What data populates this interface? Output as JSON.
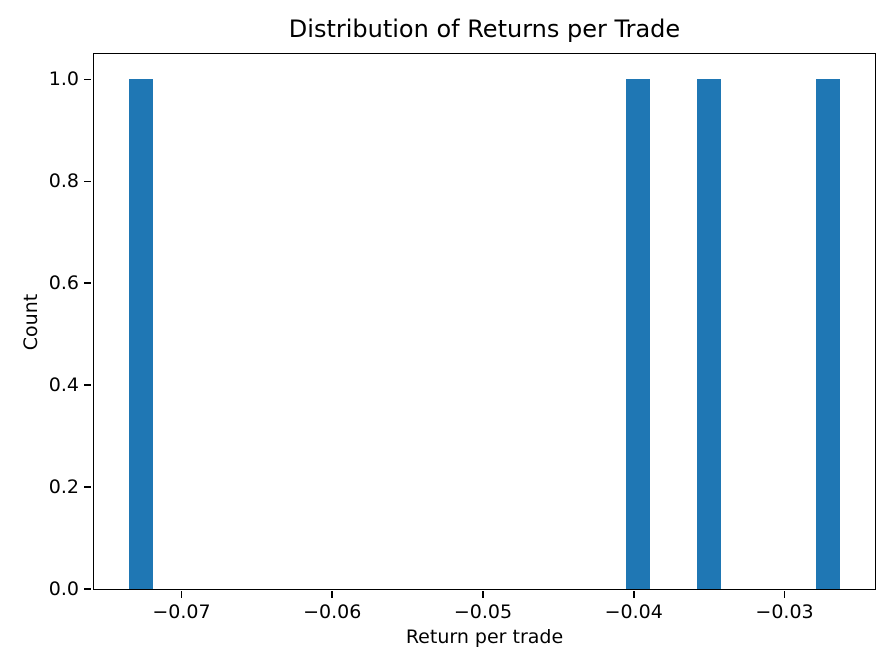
{
  "chart_data": {
    "type": "histogram",
    "title": "Distribution of Returns per Trade",
    "xlabel": "Return per trade",
    "ylabel": "Count",
    "xlim": [
      -0.0758,
      -0.024
    ],
    "ylim": [
      0,
      1.05
    ],
    "grid": false,
    "legend_position": "none",
    "bar_color": "#1f77b4",
    "axis_color": "#000000",
    "background_color": "#ffffff",
    "xticks": [
      {
        "value": -0.07,
        "label": "−0.07"
      },
      {
        "value": -0.06,
        "label": "−0.06"
      },
      {
        "value": -0.05,
        "label": "−0.05"
      },
      {
        "value": -0.04,
        "label": "−0.04"
      },
      {
        "value": -0.03,
        "label": "−0.03"
      }
    ],
    "yticks": [
      {
        "value": 0.0,
        "label": "0.0"
      },
      {
        "value": 0.2,
        "label": "0.2"
      },
      {
        "value": 0.4,
        "label": "0.4"
      },
      {
        "value": 0.6,
        "label": "0.6"
      },
      {
        "value": 0.8,
        "label": "0.8"
      },
      {
        "value": 1.0,
        "label": "1.0"
      }
    ],
    "bars": [
      {
        "x0": -0.0735,
        "x1": -0.0719,
        "count": 1
      },
      {
        "x0": -0.0405,
        "x1": -0.0389,
        "count": 1
      },
      {
        "x0": -0.0358,
        "x1": -0.0342,
        "count": 1
      },
      {
        "x0": -0.0279,
        "x1": -0.0263,
        "count": 1
      }
    ]
  }
}
